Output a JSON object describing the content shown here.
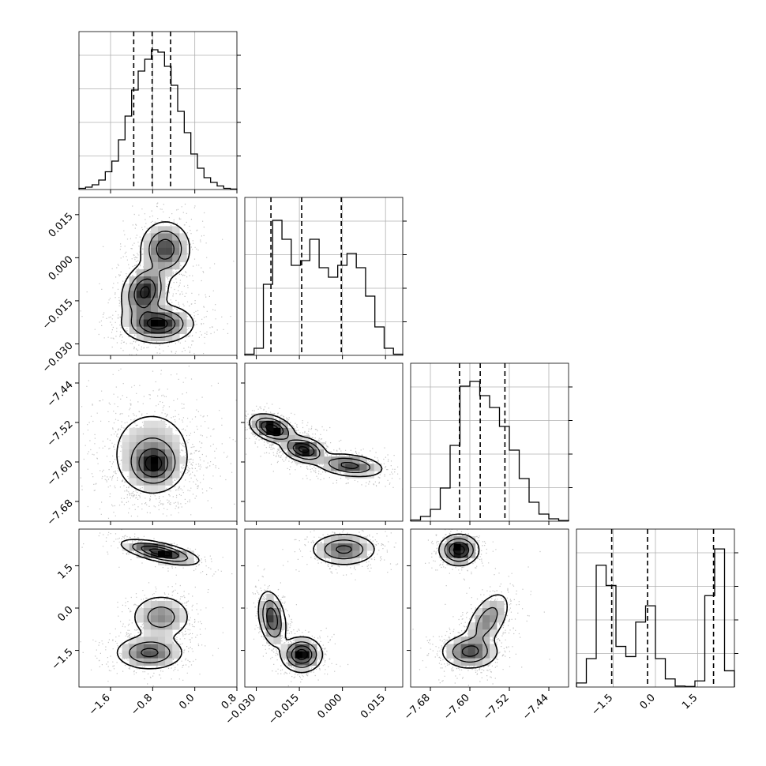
{
  "chart_data": {
    "type": "corner",
    "parameters": [
      {
        "range": [
          -2.2,
          0.8
        ],
        "ticks": [
          -1.6,
          -0.8,
          0.0,
          0.8
        ],
        "tick_labels": [
          "−1.6",
          "−0.8",
          "0.0",
          "0.8"
        ],
        "quantiles": [
          -1.16,
          -0.81,
          -0.46
        ],
        "hist_max": 60,
        "hist_values": [
          0.5,
          1,
          2,
          4,
          7.5,
          12,
          21,
          31,
          42,
          50,
          55,
          59,
          58,
          52,
          44,
          33,
          24,
          15,
          9,
          5,
          3,
          1.5,
          0.5,
          0.2
        ]
      },
      {
        "range": [
          -0.034,
          0.021
        ],
        "ticks": [
          -0.03,
          -0.015,
          0.0,
          0.015
        ],
        "tick_labels": [
          "−0.030",
          "−0.015",
          "0.000",
          "0.015"
        ],
        "quantiles": [
          -0.0249,
          -0.0142,
          -0.0004
        ],
        "hist_max": 60,
        "hist_values": [
          0.5,
          3,
          30,
          57,
          49,
          38,
          40,
          49,
          37,
          33,
          38,
          43,
          37,
          25,
          12,
          3,
          0.5
        ]
      },
      {
        "range": [
          -7.72,
          -7.4
        ],
        "ticks": [
          -7.68,
          -7.6,
          -7.52,
          -7.44
        ],
        "tick_labels": [
          "−7.68",
          "−7.60",
          "−7.52",
          "−7.44"
        ],
        "quantiles": [
          -7.621,
          -7.579,
          -7.529
        ],
        "hist_max": 60,
        "hist_values": [
          0.5,
          2,
          5,
          14,
          32,
          57,
          59,
          53,
          48,
          40,
          30,
          18,
          8,
          3,
          1,
          0.3
        ]
      },
      {
        "range": [
          -2.8,
          2.8
        ],
        "ticks": [
          -1.5,
          0.0,
          1.5
        ],
        "tick_labels": [
          "−1.5",
          "0.0",
          "1.5"
        ],
        "quantiles": [
          -1.55,
          -0.28,
          2.06
        ],
        "hist_max": 70,
        "hist_values": [
          2,
          14,
          60,
          50,
          20,
          15,
          32,
          40,
          14,
          4,
          0.5,
          0.3,
          3,
          45,
          68,
          8
        ]
      }
    ],
    "pairs": [
      {
        "row": 1,
        "col": 0,
        "scatter_spread": 0.34,
        "modes": [
          {
            "x": -0.56,
            "y": 0.003,
            "sx": 0.22,
            "sy": 0.0045,
            "rho": 0.0,
            "w": 0.3
          },
          {
            "x": -0.95,
            "y": -0.012,
            "sx": 0.2,
            "sy": 0.0045,
            "rho": 0.2,
            "w": 0.33
          },
          {
            "x": -0.7,
            "y": -0.023,
            "sx": 0.3,
            "sy": 0.003,
            "rho": 0.0,
            "w": 0.37
          }
        ]
      },
      {
        "row": 2,
        "col": 0,
        "scatter_spread": 0.32,
        "modes": [
          {
            "x": -0.82,
            "y": -7.581,
            "sx": 0.4,
            "sy": 0.045,
            "rho": 0.0,
            "w": 0.6
          },
          {
            "x": -0.78,
            "y": -7.605,
            "sx": 0.22,
            "sy": 0.022,
            "rho": 0.0,
            "w": 0.4
          }
        ]
      },
      {
        "row": 2,
        "col": 1,
        "scatter_spread": 0.34,
        "modes": [
          {
            "x": -0.0245,
            "y": -7.532,
            "sx": 0.0035,
            "sy": 0.013,
            "rho": -0.4,
            "w": 0.36
          },
          {
            "x": -0.0135,
            "y": -7.575,
            "sx": 0.0035,
            "sy": 0.012,
            "rho": -0.3,
            "w": 0.32
          },
          {
            "x": 0.0025,
            "y": -7.607,
            "sx": 0.0055,
            "sy": 0.011,
            "rho": -0.3,
            "w": 0.32
          }
        ]
      },
      {
        "row": 3,
        "col": 0,
        "scatter_spread": 0.22,
        "modes": [
          {
            "x": -0.66,
            "y": 1.98,
            "sx": 0.33,
            "sy": 0.2,
            "rho": -0.65,
            "w": 0.34
          },
          {
            "x": -0.64,
            "y": -0.32,
            "sx": 0.27,
            "sy": 0.38,
            "rho": 0.0,
            "w": 0.3
          },
          {
            "x": -0.86,
            "y": -1.58,
            "sx": 0.3,
            "sy": 0.28,
            "rho": 0.0,
            "w": 0.36
          }
        ]
      },
      {
        "row": 3,
        "col": 1,
        "scatter_spread": 0.22,
        "modes": [
          {
            "x": 0.0005,
            "y": 2.08,
            "sx": 0.0052,
            "sy": 0.26,
            "rho": 0.0,
            "w": 0.34
          },
          {
            "x": -0.0245,
            "y": -0.38,
            "sx": 0.0022,
            "sy": 0.45,
            "rho": -0.3,
            "w": 0.3
          },
          {
            "x": -0.0142,
            "y": -1.65,
            "sx": 0.0032,
            "sy": 0.28,
            "rho": 0.0,
            "w": 0.36
          }
        ]
      },
      {
        "row": 3,
        "col": 2,
        "scatter_spread": 0.22,
        "modes": [
          {
            "x": -7.622,
            "y": 2.06,
            "sx": 0.018,
            "sy": 0.25,
            "rho": 0.0,
            "w": 0.34
          },
          {
            "x": -7.565,
            "y": -0.45,
            "sx": 0.022,
            "sy": 0.5,
            "rho": 0.55,
            "w": 0.3
          },
          {
            "x": -7.6,
            "y": -1.55,
            "sx": 0.027,
            "sy": 0.28,
            "rho": 0.0,
            "w": 0.36
          }
        ]
      }
    ],
    "grid": true,
    "colors": {
      "line": "#000000",
      "grid": "#b0b0b0",
      "scatter": "#555555"
    }
  }
}
